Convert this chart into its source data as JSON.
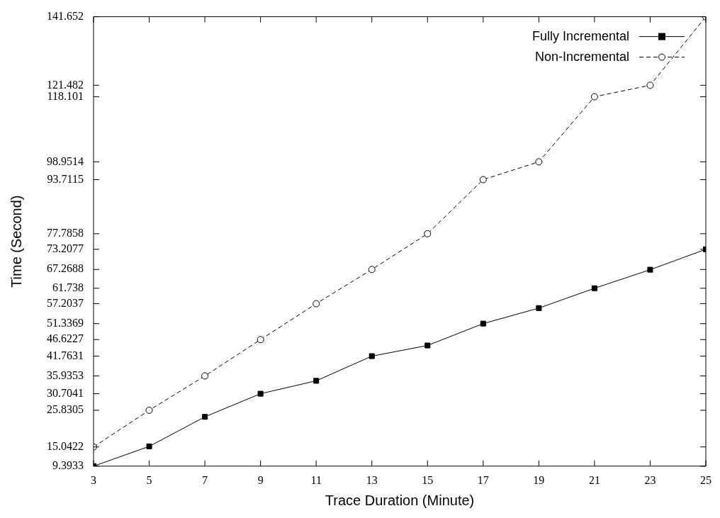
{
  "chart_data": {
    "type": "line",
    "xlabel": "Trace Duration (Minute)",
    "ylabel": "Time (Second)",
    "x": [
      3,
      5,
      7,
      9,
      11,
      13,
      15,
      17,
      19,
      21,
      23,
      25
    ],
    "series": [
      {
        "name": "Fully Incremental",
        "color": "#000000",
        "marker": "square",
        "line_style": "solid",
        "values": [
          9.3933,
          15.2,
          23.9,
          30.7041,
          34.5,
          41.7631,
          44.9,
          51.3369,
          55.9,
          61.738,
          67.2,
          73.2077
        ]
      },
      {
        "name": "Non-Incremental",
        "color": "#000000",
        "marker": "circle",
        "line_style": "dashed",
        "values": [
          15.0422,
          25.8305,
          35.9353,
          46.6227,
          57.2037,
          67.2688,
          77.7858,
          93.7115,
          98.9514,
          118.101,
          121.482,
          141.652
        ]
      }
    ],
    "xlim": [
      3,
      25
    ],
    "xticks": [
      3,
      5,
      7,
      9,
      11,
      13,
      15,
      17,
      19,
      21,
      23,
      25
    ],
    "ylim": [
      9.3933,
      141.652
    ],
    "yticks": [
      9.3933,
      15.0422,
      25.8305,
      30.7041,
      35.9353,
      41.7631,
      46.6227,
      51.3369,
      57.2037,
      61.738,
      67.2688,
      73.2077,
      77.7858,
      93.7115,
      98.9514,
      118.101,
      121.482,
      141.652
    ],
    "grid": false,
    "legend": "top right"
  }
}
